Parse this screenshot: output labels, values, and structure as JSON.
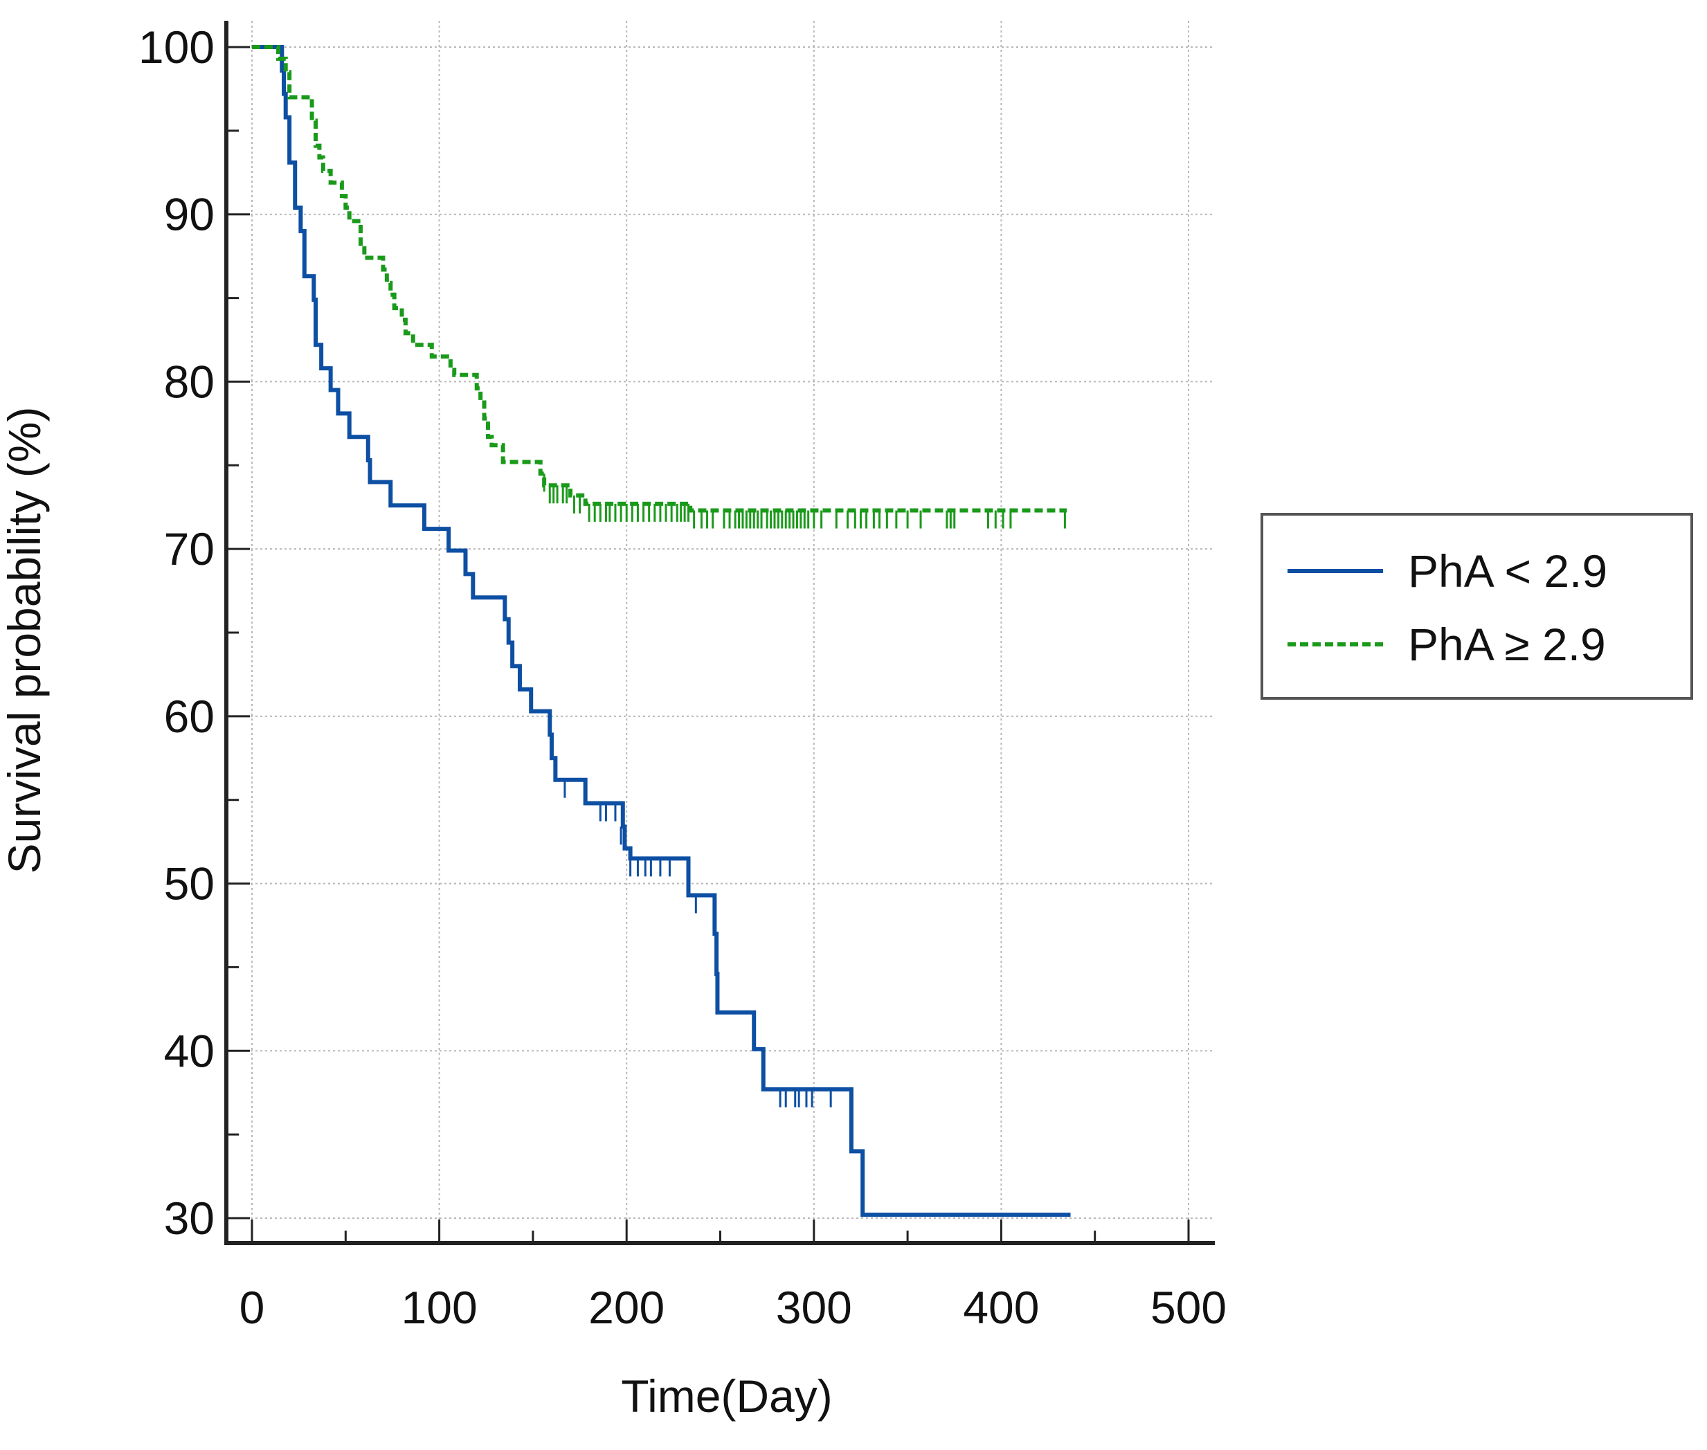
{
  "chart_data": {
    "type": "line",
    "subtype": "kaplan-meier",
    "title": "",
    "xlabel": "Time(Day)",
    "ylabel": "Survival probability (%)",
    "xlim": [
      0,
      500
    ],
    "ylim": [
      30,
      100
    ],
    "xticks": [
      0,
      100,
      200,
      300,
      400,
      500
    ],
    "yticks": [
      30,
      40,
      50,
      60,
      70,
      80,
      90,
      100
    ],
    "grid": true,
    "legend_position": "right-center",
    "series": [
      {
        "name": "PhA < 2.9",
        "color": "#0d4fa3",
        "style": "solid",
        "steps": [
          [
            0,
            100
          ],
          [
            8,
            100
          ],
          [
            16,
            98.6
          ],
          [
            17,
            97.2
          ],
          [
            18,
            95.8
          ],
          [
            20,
            93.1
          ],
          [
            23,
            90.4
          ],
          [
            26,
            89.0
          ],
          [
            28,
            86.3
          ],
          [
            33,
            84.9
          ],
          [
            34,
            82.2
          ],
          [
            37,
            80.8
          ],
          [
            42,
            79.5
          ],
          [
            46,
            78.1
          ],
          [
            52,
            76.7
          ],
          [
            62,
            75.3
          ],
          [
            63,
            74.0
          ],
          [
            74,
            72.6
          ],
          [
            92,
            71.2
          ],
          [
            105,
            69.9
          ],
          [
            114,
            68.5
          ],
          [
            118,
            67.1
          ],
          [
            135,
            65.8
          ],
          [
            137,
            64.4
          ],
          [
            139,
            63.0
          ],
          [
            143,
            61.6
          ],
          [
            149,
            60.3
          ],
          [
            159,
            58.9
          ],
          [
            160,
            57.5
          ],
          [
            162,
            56.2
          ],
          [
            178,
            54.8
          ],
          [
            198,
            53.4
          ],
          [
            199,
            52.1
          ],
          [
            202,
            51.5
          ],
          [
            233,
            49.3
          ],
          [
            247,
            47.0
          ],
          [
            248,
            44.6
          ],
          [
            248.5,
            42.3
          ],
          [
            268,
            40.1
          ],
          [
            273,
            37.7
          ],
          [
            320,
            34.0
          ],
          [
            326,
            30.2
          ],
          [
            437,
            30.2
          ]
        ],
        "censored": [
          [
            167,
            56.2
          ],
          [
            186,
            54.8
          ],
          [
            189,
            54.8
          ],
          [
            194,
            54.8
          ],
          [
            197,
            53.4
          ],
          [
            202,
            51.5
          ],
          [
            206,
            51.5
          ],
          [
            210,
            51.5
          ],
          [
            213,
            51.5
          ],
          [
            218,
            51.5
          ],
          [
            223,
            51.5
          ],
          [
            237,
            49.3
          ],
          [
            282,
            37.7
          ],
          [
            285,
            37.7
          ],
          [
            290,
            37.7
          ],
          [
            292,
            37.7
          ],
          [
            296,
            37.7
          ],
          [
            299,
            37.7
          ],
          [
            309,
            37.7
          ]
        ]
      },
      {
        "name": "PhA ≥ 2.9",
        "color": "#1a9a1a",
        "style": "dashed",
        "steps": [
          [
            0,
            100
          ],
          [
            12,
            100
          ],
          [
            14,
            99.3
          ],
          [
            18,
            98.5
          ],
          [
            20,
            97.0
          ],
          [
            32,
            95.6
          ],
          [
            34,
            94.1
          ],
          [
            36,
            93.4
          ],
          [
            38,
            92.6
          ],
          [
            42,
            91.9
          ],
          [
            48,
            91.1
          ],
          [
            50,
            90.4
          ],
          [
            52,
            89.6
          ],
          [
            58,
            88.1
          ],
          [
            60,
            87.4
          ],
          [
            70,
            86.7
          ],
          [
            72,
            85.9
          ],
          [
            74,
            85.2
          ],
          [
            76,
            84.4
          ],
          [
            80,
            83.7
          ],
          [
            82,
            82.9
          ],
          [
            86,
            82.2
          ],
          [
            96,
            81.5
          ],
          [
            106,
            80.7
          ],
          [
            108,
            80.4
          ],
          [
            120,
            79.6
          ],
          [
            122,
            78.9
          ],
          [
            124,
            77.8
          ],
          [
            126,
            76.7
          ],
          [
            128,
            76.2
          ],
          [
            134,
            75.2
          ],
          [
            154,
            74.5
          ],
          [
            156,
            73.8
          ],
          [
            170,
            73.2
          ],
          [
            178,
            72.7
          ],
          [
            234,
            72.3
          ],
          [
            435,
            72.3
          ]
        ],
        "censored": [
          [
            156,
            74.5
          ],
          [
            159,
            73.8
          ],
          [
            161,
            73.8
          ],
          [
            163,
            73.8
          ],
          [
            166,
            73.8
          ],
          [
            168,
            73.8
          ],
          [
            172,
            73.2
          ],
          [
            175,
            73.2
          ],
          [
            180,
            72.7
          ],
          [
            183,
            72.7
          ],
          [
            186,
            72.7
          ],
          [
            189,
            72.7
          ],
          [
            191,
            72.7
          ],
          [
            194,
            72.7
          ],
          [
            197,
            72.7
          ],
          [
            200,
            72.7
          ],
          [
            203,
            72.7
          ],
          [
            206,
            72.7
          ],
          [
            209,
            72.7
          ],
          [
            212,
            72.7
          ],
          [
            215,
            72.7
          ],
          [
            218,
            72.7
          ],
          [
            221,
            72.7
          ],
          [
            224,
            72.7
          ],
          [
            227,
            72.7
          ],
          [
            229,
            72.7
          ],
          [
            231,
            72.7
          ],
          [
            233,
            72.7
          ],
          [
            236,
            72.3
          ],
          [
            240,
            72.3
          ],
          [
            243,
            72.3
          ],
          [
            246,
            72.3
          ],
          [
            252,
            72.3
          ],
          [
            255,
            72.3
          ],
          [
            258,
            72.3
          ],
          [
            260,
            72.3
          ],
          [
            262,
            72.3
          ],
          [
            264,
            72.3
          ],
          [
            266,
            72.3
          ],
          [
            268,
            72.3
          ],
          [
            270,
            72.3
          ],
          [
            272,
            72.3
          ],
          [
            275,
            72.3
          ],
          [
            277,
            72.3
          ],
          [
            279,
            72.3
          ],
          [
            281,
            72.3
          ],
          [
            283,
            72.3
          ],
          [
            285,
            72.3
          ],
          [
            287,
            72.3
          ],
          [
            289,
            72.3
          ],
          [
            291,
            72.3
          ],
          [
            293,
            72.3
          ],
          [
            295,
            72.3
          ],
          [
            297,
            72.3
          ],
          [
            300,
            72.3
          ],
          [
            304,
            72.3
          ],
          [
            312,
            72.3
          ],
          [
            318,
            72.3
          ],
          [
            322,
            72.3
          ],
          [
            325,
            72.3
          ],
          [
            328,
            72.3
          ],
          [
            332,
            72.3
          ],
          [
            335,
            72.3
          ],
          [
            339,
            72.3
          ],
          [
            344,
            72.3
          ],
          [
            350,
            72.3
          ],
          [
            357,
            72.3
          ],
          [
            371,
            72.3
          ],
          [
            373,
            72.3
          ],
          [
            375,
            72.3
          ],
          [
            393,
            72.3
          ],
          [
            397,
            72.3
          ],
          [
            401,
            72.3
          ],
          [
            405,
            72.3
          ],
          [
            434,
            72.3
          ]
        ]
      }
    ]
  }
}
